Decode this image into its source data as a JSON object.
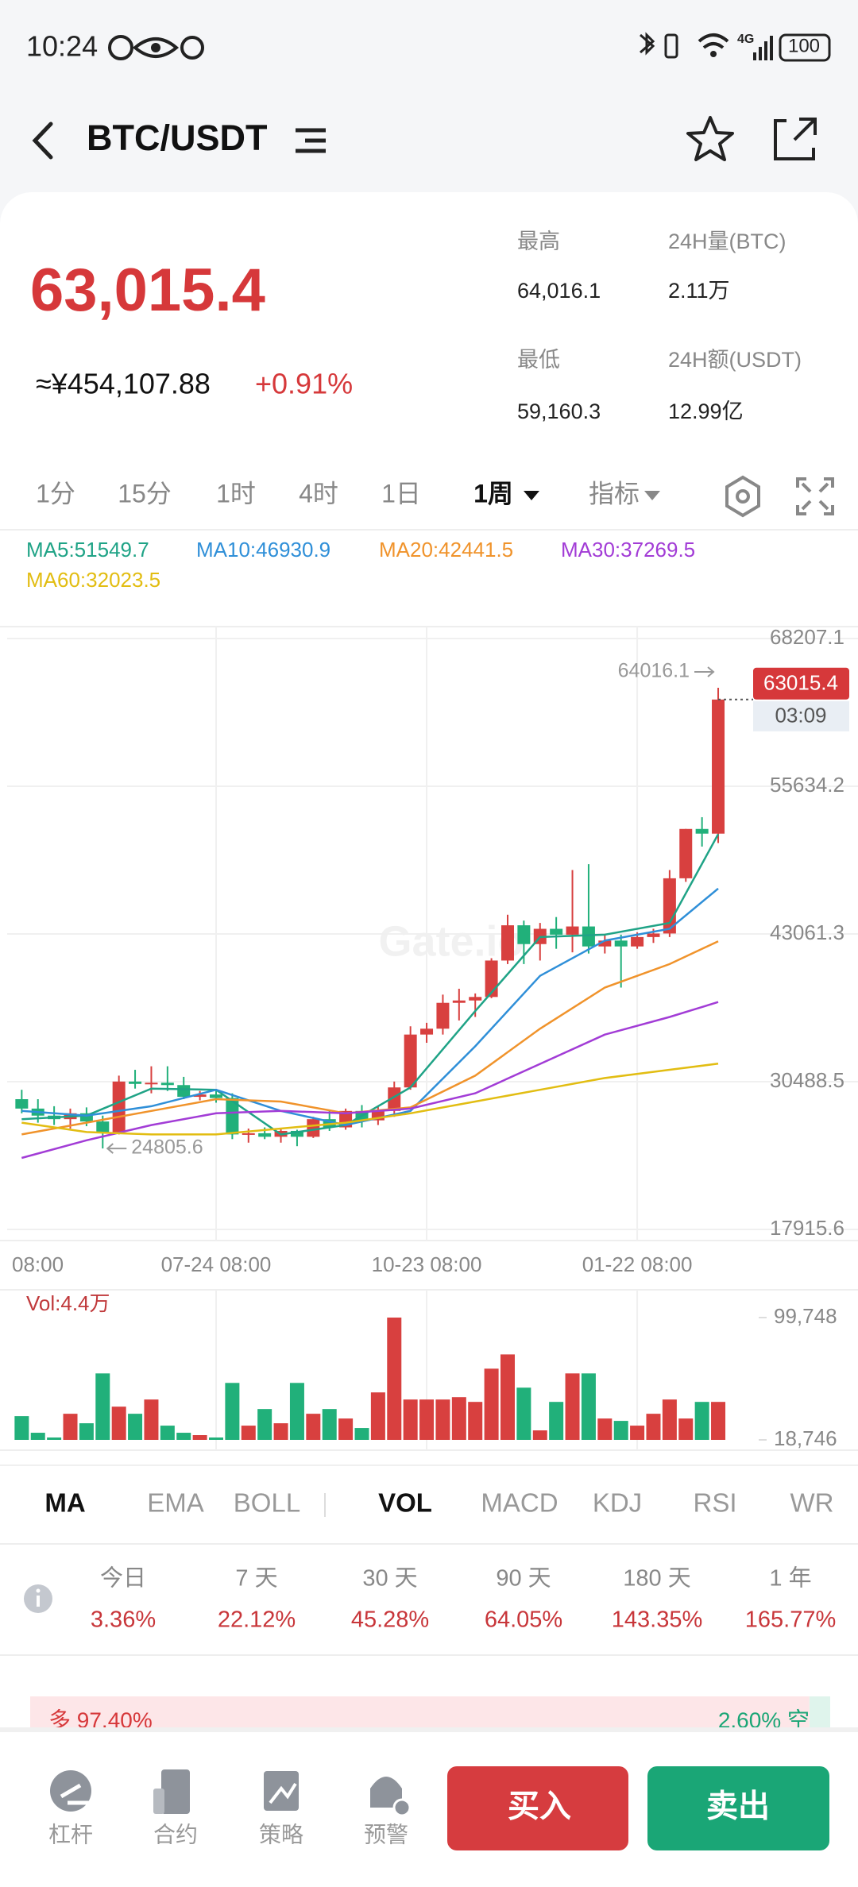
{
  "status_bar": {
    "time": "10:24",
    "network": "4G",
    "battery": "100"
  },
  "header": {
    "pair": "BTC/USDT"
  },
  "ticker": {
    "price": "63,015.4",
    "cny": "≈¥454,107.88",
    "change": "+0.91%",
    "stats": [
      {
        "label": "最高",
        "value": "64,016.1"
      },
      {
        "label": "24H量(BTC)",
        "value": "2.11万"
      },
      {
        "label": "最低",
        "value": "59,160.3"
      },
      {
        "label": "24H额(USDT)",
        "value": "12.99亿"
      }
    ]
  },
  "timeframes": [
    "1分",
    "15分",
    "1时",
    "4时",
    "1日",
    "1周",
    "指标"
  ],
  "chart_data": {
    "type": "candlestick",
    "up_color": "#d8403f",
    "down_color": "#21b07a",
    "xlim": [
      -0.9,
      45.5
    ],
    "xticks": [
      {
        "value": -1,
        "label": "08:00"
      },
      {
        "value": 12,
        "label": "07-24 08:00"
      },
      {
        "value": 25,
        "label": "10-23 08:00"
      },
      {
        "value": 38,
        "label": "01-22 08:00"
      }
    ],
    "ylim": [
      17915.6,
      68207.1
    ],
    "yticks": [
      68207.1,
      55634.2,
      43061.3,
      30488.5,
      17915.6
    ],
    "grid": true,
    "watermark": "Gate.io",
    "countdown": "03:09",
    "ohlc": [
      [
        29000,
        29800,
        27800,
        28200
      ],
      [
        28200,
        29000,
        27000,
        27600
      ],
      [
        27600,
        28400,
        26800,
        27300
      ],
      [
        27300,
        28200,
        26500,
        27800
      ],
      [
        27800,
        28300,
        26700,
        27100
      ],
      [
        27100,
        27600,
        24805.6,
        26200
      ],
      [
        26200,
        31000,
        26000,
        30500
      ],
      [
        30500,
        31500,
        29900,
        30300
      ],
      [
        30300,
        31800,
        29500,
        30400
      ],
      [
        30400,
        31800,
        29700,
        30200
      ],
      [
        30200,
        30900,
        29000,
        29200
      ],
      [
        29200,
        29700,
        28900,
        29400
      ],
      [
        29400,
        29800,
        28700,
        29100
      ],
      [
        29100,
        29500,
        25600,
        26000
      ],
      [
        26000,
        26500,
        25300,
        26100
      ],
      [
        26100,
        26600,
        25600,
        25800
      ],
      [
        25800,
        26500,
        25300,
        26300
      ],
      [
        26300,
        26400,
        25000,
        25800
      ],
      [
        25800,
        27500,
        25700,
        27300
      ],
      [
        27300,
        28000,
        26300,
        26600
      ],
      [
        26600,
        28200,
        26400,
        28000
      ],
      [
        28000,
        28500,
        26600,
        27200
      ],
      [
        27200,
        28400,
        26800,
        28000
      ],
      [
        28000,
        30500,
        27500,
        30000
      ],
      [
        30000,
        35200,
        29800,
        34500
      ],
      [
        34500,
        35500,
        33800,
        35000
      ],
      [
        35000,
        37900,
        34500,
        37200
      ],
      [
        37200,
        38400,
        35700,
        37400
      ],
      [
        37400,
        38000,
        36000,
        37700
      ],
      [
        37700,
        41000,
        37600,
        40800
      ],
      [
        40800,
        44700,
        40500,
        43800
      ],
      [
        43800,
        44200,
        40500,
        42200
      ],
      [
        42200,
        44000,
        40800,
        43500
      ],
      [
        43500,
        44500,
        41800,
        43000
      ],
      [
        43000,
        48500,
        41500,
        43700
      ],
      [
        43700,
        49000,
        41400,
        42000
      ],
      [
        42000,
        43000,
        41400,
        42500
      ],
      [
        42500,
        43000,
        38500,
        42000
      ],
      [
        42000,
        43200,
        41800,
        42800
      ],
      [
        42800,
        43500,
        42300,
        43100
      ],
      [
        43100,
        48500,
        42800,
        47800
      ],
      [
        47800,
        52000,
        47500,
        52000
      ],
      [
        52000,
        53000,
        50500,
        51600
      ],
      [
        51600,
        64016.1,
        50800,
        63015.4
      ]
    ],
    "ma_series": [
      {
        "name": "MA5:51549.7",
        "color": "#1fa386",
        "x": [
          0,
          4,
          8,
          12,
          16,
          20,
          24,
          28,
          32,
          36,
          40,
          43
        ],
        "values": [
          27300,
          27600,
          29900,
          29800,
          26000,
          26800,
          30000,
          36500,
          42800,
          43000,
          44000,
          51549.7
        ]
      },
      {
        "name": "MA10:46930.9",
        "color": "#2f8fd8",
        "x": [
          0,
          4,
          8,
          12,
          16,
          20,
          24,
          28,
          32,
          36,
          40,
          43
        ],
        "values": [
          28000,
          27600,
          28400,
          29800,
          28000,
          26800,
          28000,
          33500,
          39500,
          42500,
          43500,
          46930.9
        ]
      },
      {
        "name": "MA20:42441.5",
        "color": "#f0932b",
        "x": [
          0,
          4,
          8,
          12,
          16,
          20,
          24,
          28,
          32,
          36,
          40,
          43
        ],
        "values": [
          26000,
          27000,
          28000,
          29000,
          28800,
          27800,
          28300,
          31000,
          35000,
          38500,
          40500,
          42441.5
        ]
      },
      {
        "name": "MA30:37269.5",
        "color": "#a23cd6",
        "x": [
          0,
          4,
          8,
          12,
          16,
          20,
          24,
          28,
          32,
          36,
          40,
          43
        ],
        "values": [
          24000,
          25500,
          26800,
          27800,
          28000,
          27800,
          28200,
          29500,
          32000,
          34500,
          36000,
          37269.5
        ]
      },
      {
        "name": "MA60:32023.5",
        "color": "#e2bd12",
        "x": [
          0,
          4,
          8,
          12,
          16,
          20,
          24,
          28,
          32,
          36,
          40,
          43
        ],
        "values": [
          27000,
          26200,
          26000,
          26000,
          26500,
          27000,
          27800,
          28800,
          29800,
          30800,
          31500,
          32023.5
        ]
      }
    ],
    "volume": {
      "title": "Vol:4.4万",
      "ylim": [
        18746,
        99748
      ],
      "yticks": [
        {
          "value": 99748,
          "label": "99,748"
        },
        {
          "value": 18746,
          "label": "18,746"
        }
      ],
      "values": [
        34466,
        23462,
        20318,
        36038,
        29750,
        62762,
        40754,
        36038,
        45470,
        28178,
        23462,
        21890,
        20318,
        56474,
        28178,
        39182,
        29750,
        56474,
        36038,
        39182,
        32894,
        26606,
        50186,
        99748,
        45470,
        45470,
        45470,
        47042,
        43898,
        65906,
        75338,
        53330,
        25034,
        43898,
        62762,
        62762,
        32894,
        31322,
        28178,
        36038,
        45470,
        32894,
        43898,
        43898
      ]
    }
  },
  "indicator_tabs": [
    "MA",
    "EMA",
    "BOLL",
    "VOL",
    "MACD",
    "KDJ",
    "RSI",
    "WR"
  ],
  "returns": [
    {
      "period": "今日",
      "value": "3.36%"
    },
    {
      "period": "7 天",
      "value": "22.12%"
    },
    {
      "period": "30 天",
      "value": "45.28%"
    },
    {
      "period": "90 天",
      "value": "64.05%"
    },
    {
      "period": "180 天",
      "value": "143.35%"
    },
    {
      "period": "1 年",
      "value": "165.77%"
    }
  ],
  "long_short": {
    "long": {
      "label": "多 97.40%",
      "value": 97.4
    },
    "short": {
      "label": "2.60% 空",
      "value": 2.6
    }
  },
  "nav": [
    "杠杆",
    "合约",
    "策略",
    "预警"
  ],
  "buttons": {
    "buy": "买入",
    "sell": "卖出"
  }
}
